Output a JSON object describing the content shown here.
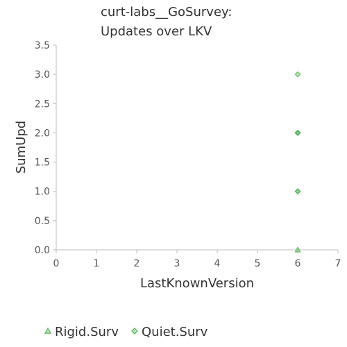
{
  "chart_data": {
    "type": "scatter",
    "title_lines": [
      "curt-labs__GoSurvey:",
      "Updates over LKV"
    ],
    "xlabel": "LastKnownVersion",
    "ylabel": "SumUpd",
    "xlim": [
      0,
      7
    ],
    "ylim": [
      0,
      3.5
    ],
    "xticks": [
      "0",
      "1",
      "2",
      "3",
      "4",
      "5",
      "6",
      "7"
    ],
    "yticks": [
      "0.0",
      "0.5",
      "1.0",
      "1.5",
      "2.0",
      "2.5",
      "3.0",
      "3.5"
    ],
    "grid": false,
    "legend_position": "bottom",
    "series": [
      {
        "name": "Rigid.Surv",
        "marker": "triangle",
        "color": "#4caf50",
        "points": [
          {
            "x": 6,
            "y": 0
          }
        ]
      },
      {
        "name": "Quiet.Surv",
        "marker": "diamond",
        "color": "#4caf50",
        "points": [
          {
            "x": 6,
            "y": 3
          },
          {
            "x": 6,
            "y": 2
          },
          {
            "x": 6,
            "y": 2
          },
          {
            "x": 6,
            "y": 2
          },
          {
            "x": 6,
            "y": 1
          },
          {
            "x": 6,
            "y": 1
          }
        ]
      }
    ]
  }
}
